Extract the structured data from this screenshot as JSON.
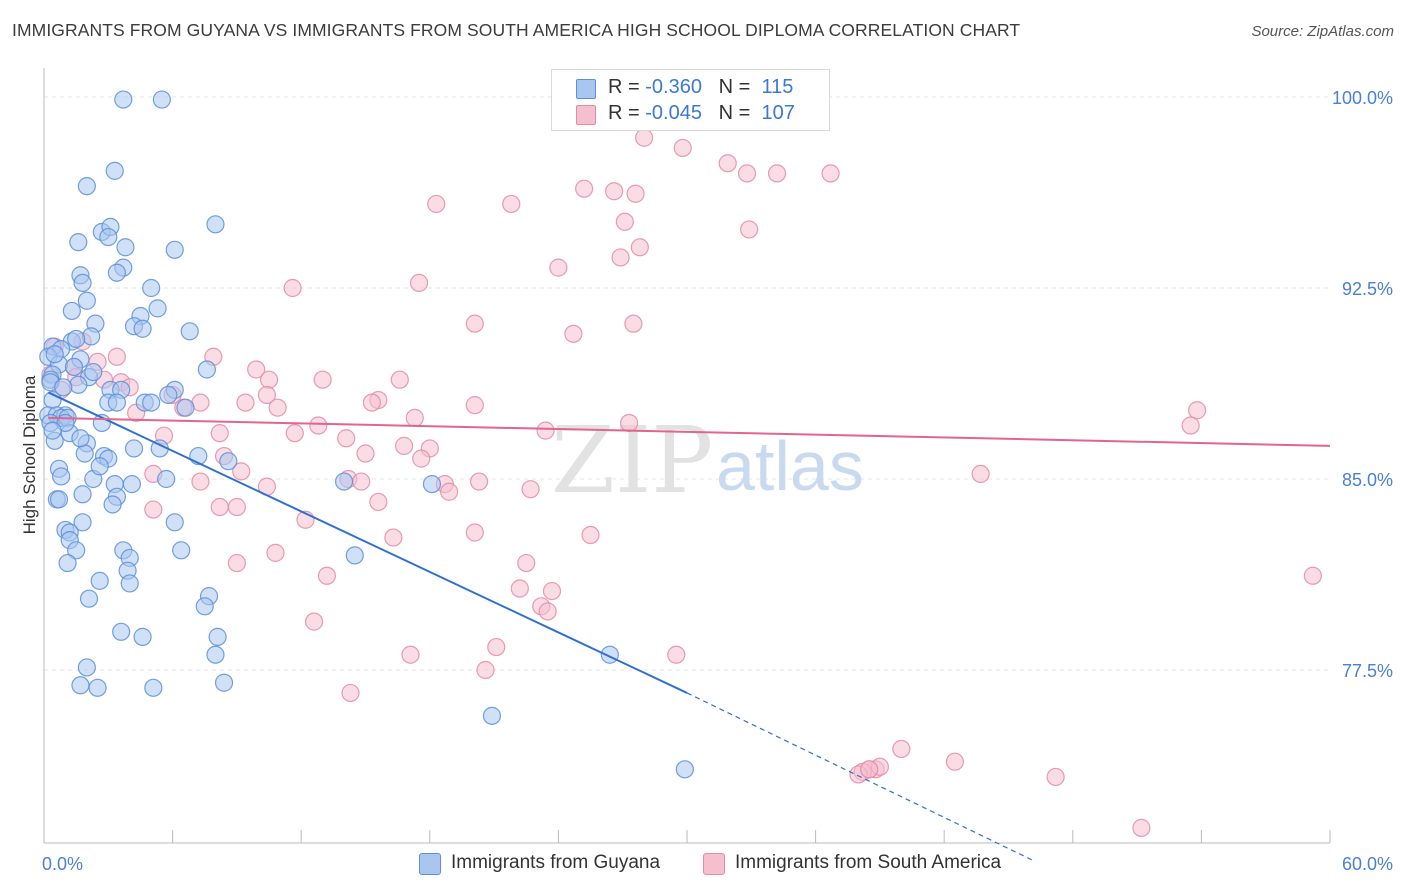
{
  "title": "IMMIGRANTS FROM GUYANA VS IMMIGRANTS FROM SOUTH AMERICA HIGH SCHOOL DIPLOMA CORRELATION CHART",
  "source": "Source: ZipAtlas.com",
  "watermark": {
    "zip": "ZIP",
    "atlas": "atlas"
  },
  "legend": {
    "rows": [
      {
        "r_label": "R = ",
        "r_value": "-0.360",
        "n_label": "N = ",
        "n_value": "115"
      },
      {
        "r_label": "R = ",
        "r_value": "-0.045",
        "n_label": "N = ",
        "n_value": "107"
      }
    ]
  },
  "bottom_legend": [
    "Immigrants from Guyana",
    "Immigrants from South America"
  ],
  "colors": {
    "guyana_fill": "#a9c6f0",
    "guyana_stroke": "#5b8fd9",
    "guyana_line": "#2f6fd1",
    "sa_fill": "#f6bfd0",
    "sa_stroke": "#e48aa8",
    "sa_line": "#e2648f",
    "tick_text": "#4a7fd6",
    "grid": "#e5e5e5"
  },
  "chart_data": {
    "type": "scatter",
    "title": "IMMIGRANTS FROM GUYANA VS IMMIGRANTS FROM SOUTH AMERICA HIGH SCHOOL DIPLOMA CORRELATION CHART",
    "xlabel": "",
    "ylabel": "High School Diploma",
    "xlim": [
      0,
      60
    ],
    "ylim": [
      70,
      100.5
    ],
    "x_tick_labels": [
      "0.0%",
      "60.0%"
    ],
    "y_ticks": [
      100,
      92.5,
      85,
      77.5
    ],
    "y_tick_labels": [
      "100.0%",
      "92.5%",
      "85.0%",
      "77.5%"
    ],
    "series": [
      {
        "name": "Immigrants from Guyana",
        "R": -0.36,
        "N": 115,
        "trend": {
          "x0": 0.2,
          "y0": 88.4,
          "x1": 30.0,
          "y1": 76.6,
          "dash_to_x": 46.2,
          "dash_to_y": 70.0
        },
        "points": [
          [
            3.7,
            99.9
          ],
          [
            5.5,
            99.9
          ],
          [
            3.3,
            97.1
          ],
          [
            2.0,
            96.5
          ],
          [
            8.0,
            95.0
          ],
          [
            2.7,
            94.7
          ],
          [
            3.1,
            94.9
          ],
          [
            3.0,
            94.5
          ],
          [
            1.6,
            94.3
          ],
          [
            3.8,
            94.1
          ],
          [
            6.1,
            94.0
          ],
          [
            3.7,
            93.3
          ],
          [
            3.4,
            93.1
          ],
          [
            1.7,
            93.0
          ],
          [
            1.8,
            92.7
          ],
          [
            5.0,
            92.5
          ],
          [
            2.0,
            92.0
          ],
          [
            5.3,
            91.7
          ],
          [
            1.3,
            91.6
          ],
          [
            4.5,
            91.4
          ],
          [
            2.4,
            91.1
          ],
          [
            4.2,
            91.0
          ],
          [
            4.6,
            90.9
          ],
          [
            6.8,
            90.8
          ],
          [
            2.2,
            90.6
          ],
          [
            1.3,
            90.4
          ],
          [
            0.4,
            90.2
          ],
          [
            0.8,
            90.1
          ],
          [
            0.2,
            89.8
          ],
          [
            1.7,
            89.7
          ],
          [
            0.7,
            89.5
          ],
          [
            1.4,
            89.4
          ],
          [
            7.6,
            89.3
          ],
          [
            0.4,
            89.1
          ],
          [
            2.1,
            89.0
          ],
          [
            0.3,
            88.9
          ],
          [
            1.6,
            88.7
          ],
          [
            3.1,
            88.5
          ],
          [
            3.6,
            88.5
          ],
          [
            6.1,
            88.5
          ],
          [
            5.8,
            88.3
          ],
          [
            0.4,
            88.1
          ],
          [
            3.0,
            88.0
          ],
          [
            3.4,
            88.0
          ],
          [
            4.7,
            88.0
          ],
          [
            5.0,
            88.0
          ],
          [
            6.6,
            87.8
          ],
          [
            0.2,
            87.5
          ],
          [
            0.6,
            87.5
          ],
          [
            1.0,
            87.5
          ],
          [
            0.8,
            87.4
          ],
          [
            0.3,
            87.2
          ],
          [
            1.1,
            87.4
          ],
          [
            2.7,
            87.2
          ],
          [
            1.2,
            86.8
          ],
          [
            0.5,
            86.5
          ],
          [
            2.0,
            86.4
          ],
          [
            4.2,
            86.2
          ],
          [
            5.4,
            86.2
          ],
          [
            1.9,
            86.0
          ],
          [
            2.8,
            85.9
          ],
          [
            3.0,
            85.8
          ],
          [
            7.2,
            85.9
          ],
          [
            8.6,
            85.7
          ],
          [
            0.7,
            85.4
          ],
          [
            0.8,
            85.1
          ],
          [
            2.3,
            85.0
          ],
          [
            5.7,
            85.0
          ],
          [
            3.3,
            84.8
          ],
          [
            4.1,
            84.8
          ],
          [
            14.0,
            84.9
          ],
          [
            18.1,
            84.8
          ],
          [
            3.4,
            84.3
          ],
          [
            0.6,
            84.2
          ],
          [
            0.7,
            84.2
          ],
          [
            1.8,
            84.4
          ],
          [
            3.2,
            84.0
          ],
          [
            1.8,
            83.3
          ],
          [
            6.1,
            83.3
          ],
          [
            1.0,
            83.0
          ],
          [
            1.2,
            82.9
          ],
          [
            1.2,
            82.6
          ],
          [
            1.5,
            82.2
          ],
          [
            3.7,
            82.2
          ],
          [
            6.4,
            82.2
          ],
          [
            14.5,
            82.0
          ],
          [
            4.0,
            81.9
          ],
          [
            1.1,
            81.7
          ],
          [
            3.9,
            81.4
          ],
          [
            2.6,
            81.0
          ],
          [
            4.0,
            80.9
          ],
          [
            7.7,
            80.4
          ],
          [
            2.1,
            80.3
          ],
          [
            7.5,
            80.0
          ],
          [
            3.6,
            79.0
          ],
          [
            4.6,
            78.8
          ],
          [
            8.1,
            78.8
          ],
          [
            8.0,
            78.1
          ],
          [
            26.4,
            78.1
          ],
          [
            2.0,
            77.6
          ],
          [
            1.7,
            76.9
          ],
          [
            2.5,
            76.8
          ],
          [
            5.1,
            76.8
          ],
          [
            8.4,
            77.0
          ],
          [
            20.9,
            75.7
          ],
          [
            29.9,
            73.6
          ],
          [
            0.5,
            89.9
          ],
          [
            1.5,
            90.5
          ],
          [
            0.3,
            88.8
          ],
          [
            1.0,
            87.2
          ],
          [
            2.3,
            89.2
          ],
          [
            0.9,
            88.6
          ],
          [
            1.7,
            86.6
          ],
          [
            0.4,
            86.9
          ],
          [
            2.6,
            85.5
          ]
        ]
      },
      {
        "name": "Immigrants from South America",
        "R": -0.045,
        "N": 107,
        "trend": {
          "x0": 0.2,
          "y0": 87.4,
          "x1": 60.0,
          "y1": 86.3
        },
        "points": [
          [
            35.7,
            100.0
          ],
          [
            28.0,
            98.4
          ],
          [
            29.8,
            98.0
          ],
          [
            31.9,
            97.4
          ],
          [
            32.8,
            97.0
          ],
          [
            34.2,
            97.0
          ],
          [
            36.7,
            97.0
          ],
          [
            25.2,
            96.4
          ],
          [
            26.6,
            96.3
          ],
          [
            27.6,
            96.2
          ],
          [
            18.3,
            95.8
          ],
          [
            21.8,
            95.8
          ],
          [
            27.1,
            95.1
          ],
          [
            32.9,
            94.8
          ],
          [
            27.8,
            94.1
          ],
          [
            26.9,
            93.7
          ],
          [
            24.0,
            93.3
          ],
          [
            17.5,
            92.7
          ],
          [
            11.6,
            92.5
          ],
          [
            20.1,
            91.1
          ],
          [
            27.5,
            91.1
          ],
          [
            24.7,
            90.7
          ],
          [
            0.5,
            90.2
          ],
          [
            1.8,
            90.4
          ],
          [
            7.9,
            89.8
          ],
          [
            3.4,
            89.8
          ],
          [
            2.5,
            89.6
          ],
          [
            1.4,
            89.4
          ],
          [
            9.9,
            89.3
          ],
          [
            0.3,
            89.1
          ],
          [
            1.5,
            89.0
          ],
          [
            2.8,
            88.9
          ],
          [
            10.5,
            88.9
          ],
          [
            13.0,
            88.9
          ],
          [
            16.6,
            88.9
          ],
          [
            3.6,
            88.8
          ],
          [
            0.8,
            88.5
          ],
          [
            4.0,
            88.6
          ],
          [
            6.0,
            88.3
          ],
          [
            10.4,
            88.3
          ],
          [
            15.6,
            88.1
          ],
          [
            7.3,
            88.0
          ],
          [
            9.4,
            88.0
          ],
          [
            20.1,
            87.9
          ],
          [
            6.5,
            87.8
          ],
          [
            15.3,
            88.0
          ],
          [
            10.9,
            87.8
          ],
          [
            4.3,
            87.6
          ],
          [
            17.3,
            87.4
          ],
          [
            27.3,
            87.2
          ],
          [
            53.8,
            87.7
          ],
          [
            53.5,
            87.1
          ],
          [
            8.2,
            86.8
          ],
          [
            11.7,
            86.8
          ],
          [
            12.8,
            87.1
          ],
          [
            5.6,
            86.7
          ],
          [
            14.1,
            86.6
          ],
          [
            23.4,
            86.9
          ],
          [
            16.8,
            86.3
          ],
          [
            18.0,
            86.2
          ],
          [
            15.0,
            86.0
          ],
          [
            8.4,
            85.9
          ],
          [
            17.6,
            85.8
          ],
          [
            9.2,
            85.3
          ],
          [
            5.1,
            85.2
          ],
          [
            14.2,
            85.0
          ],
          [
            14.8,
            84.9
          ],
          [
            20.3,
            84.9
          ],
          [
            7.3,
            84.9
          ],
          [
            18.7,
            84.8
          ],
          [
            10.4,
            84.7
          ],
          [
            22.7,
            84.6
          ],
          [
            18.9,
            84.5
          ],
          [
            43.7,
            85.2
          ],
          [
            15.6,
            84.1
          ],
          [
            9.0,
            83.9
          ],
          [
            8.2,
            83.9
          ],
          [
            5.1,
            83.8
          ],
          [
            12.2,
            83.4
          ],
          [
            20.1,
            82.9
          ],
          [
            16.3,
            82.7
          ],
          [
            25.5,
            82.8
          ],
          [
            10.8,
            82.1
          ],
          [
            9.0,
            81.7
          ],
          [
            22.5,
            81.7
          ],
          [
            13.2,
            81.2
          ],
          [
            59.2,
            81.2
          ],
          [
            22.2,
            80.7
          ],
          [
            23.7,
            80.6
          ],
          [
            23.2,
            80.0
          ],
          [
            23.5,
            79.8
          ],
          [
            12.6,
            79.4
          ],
          [
            17.1,
            78.1
          ],
          [
            21.1,
            78.4
          ],
          [
            29.5,
            78.1
          ],
          [
            20.6,
            77.5
          ],
          [
            14.3,
            76.6
          ],
          [
            38.8,
            73.6
          ],
          [
            38.5,
            73.6
          ],
          [
            38.2,
            73.5
          ],
          [
            38.0,
            73.4
          ],
          [
            42.5,
            73.9
          ],
          [
            39.0,
            73.7
          ],
          [
            47.2,
            73.3
          ],
          [
            51.2,
            71.3
          ],
          [
            38.5,
            73.6
          ],
          [
            40.0,
            74.4
          ]
        ]
      }
    ]
  }
}
